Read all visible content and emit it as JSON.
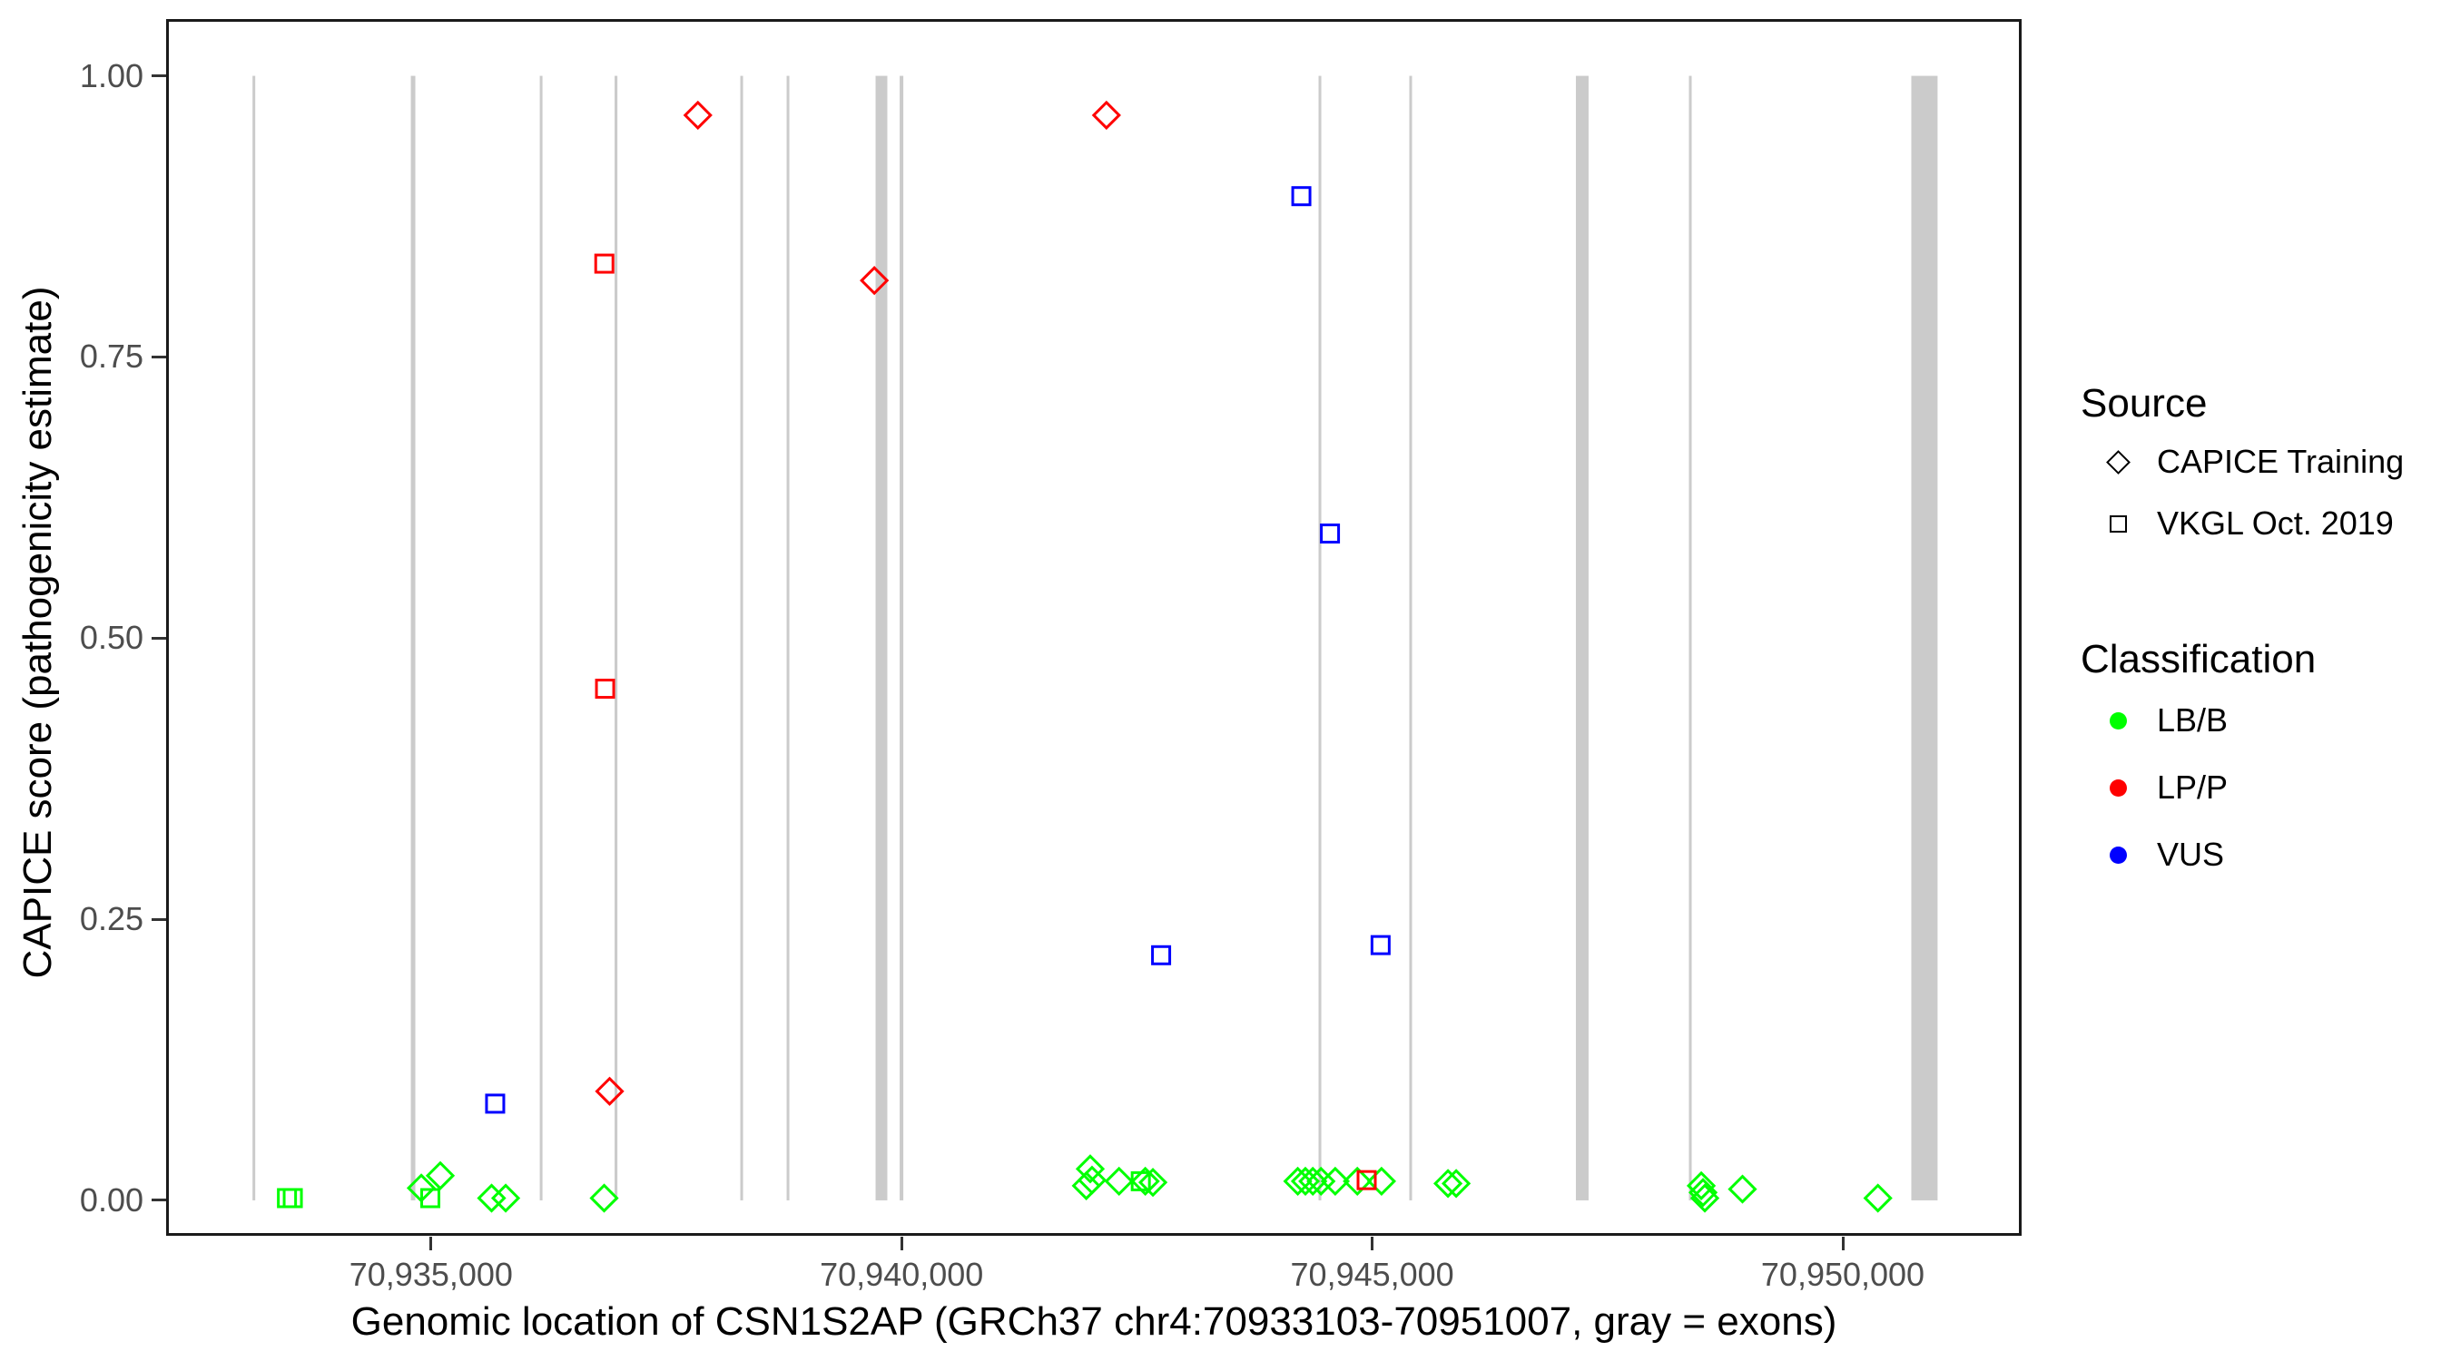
{
  "legend": {
    "source": {
      "title": "Source",
      "items": [
        {
          "label": "CAPICE Training",
          "shape": "diamond"
        },
        {
          "label": "VKGL Oct. 2019",
          "shape": "square"
        }
      ]
    },
    "classification": {
      "title": "Classification",
      "items": [
        {
          "label": "LB/B",
          "color": "#00FF00"
        },
        {
          "label": "LP/P",
          "color": "#FF0000"
        },
        {
          "label": "VUS",
          "color": "#0000FF"
        }
      ]
    }
  },
  "chart_data": {
    "type": "scatter",
    "xlabel": "Genomic location of CSN1S2AP (GRCh37 chr4:70933103-70951007, gray = exons)",
    "ylabel": "CAPICE score (pathogenicity estimate)",
    "x_domain": [
      70932185,
      70951900
    ],
    "y_domain": [
      -0.0315,
      1.0505
    ],
    "grid": false,
    "legend_position": "right",
    "x_ticks": [
      {
        "value": 70935000,
        "label": "70,935,000"
      },
      {
        "value": 70940000,
        "label": "70,940,000"
      },
      {
        "value": 70945000,
        "label": "70,945,000"
      },
      {
        "value": 70950000,
        "label": "70,950,000"
      }
    ],
    "y_ticks": [
      {
        "value": 0.0,
        "label": "0.00"
      },
      {
        "value": 0.25,
        "label": "0.25"
      },
      {
        "value": 0.5,
        "label": "0.50"
      },
      {
        "value": 0.75,
        "label": "0.75"
      },
      {
        "value": 1.0,
        "label": "1.00"
      }
    ],
    "exon_color": "#CBCBCB",
    "exons": [
      [
        70933103,
        70933132
      ],
      [
        70934785,
        70934833
      ],
      [
        70936155,
        70936184
      ],
      [
        70936950,
        70936980
      ],
      [
        70938286,
        70938315
      ],
      [
        70938778,
        70938807
      ],
      [
        70939723,
        70939848
      ],
      [
        70939979,
        70940018
      ],
      [
        70944430,
        70944459
      ],
      [
        70945394,
        70945423
      ],
      [
        70947164,
        70947299
      ],
      [
        70948365,
        70948394
      ],
      [
        70950728,
        70951007
      ]
    ],
    "source_shapes": {
      "CAPICE Training": "diamond",
      "VKGL Oct. 2019": "square"
    },
    "class_colors": {
      "LB/B": "#00FF00",
      "LP/P": "#FF0000",
      "VUS": "#0000FF"
    },
    "points": [
      {
        "x": 70933469,
        "y": 0.002,
        "source": "VKGL Oct. 2019",
        "classification": "LB/B"
      },
      {
        "x": 70933531,
        "y": 0.002,
        "source": "VKGL Oct. 2019",
        "classification": "LB/B"
      },
      {
        "x": 70934896,
        "y": 0.011,
        "source": "CAPICE Training",
        "classification": "LB/B"
      },
      {
        "x": 70934992,
        "y": 0.002,
        "source": "VKGL Oct. 2019",
        "classification": "LB/B"
      },
      {
        "x": 70935098,
        "y": 0.022,
        "source": "CAPICE Training",
        "classification": "LB/B"
      },
      {
        "x": 70935643,
        "y": 0.002,
        "source": "CAPICE Training",
        "classification": "LB/B"
      },
      {
        "x": 70935793,
        "y": 0.002,
        "source": "CAPICE Training",
        "classification": "LB/B"
      },
      {
        "x": 70936839,
        "y": 0.002,
        "source": "CAPICE Training",
        "classification": "LB/B"
      },
      {
        "x": 70941962,
        "y": 0.013,
        "source": "CAPICE Training",
        "classification": "LB/B"
      },
      {
        "x": 70942004,
        "y": 0.028,
        "source": "CAPICE Training",
        "classification": "LB/B"
      },
      {
        "x": 70942023,
        "y": 0.018,
        "source": "CAPICE Training",
        "classification": "LB/B"
      },
      {
        "x": 70942310,
        "y": 0.017,
        "source": "CAPICE Training",
        "classification": "LB/B"
      },
      {
        "x": 70942541,
        "y": 0.017,
        "source": "VKGL Oct. 2019",
        "classification": "LB/B"
      },
      {
        "x": 70942589,
        "y": 0.017,
        "source": "CAPICE Training",
        "classification": "LB/B"
      },
      {
        "x": 70942670,
        "y": 0.016,
        "source": "CAPICE Training",
        "classification": "LB/B"
      },
      {
        "x": 70944209,
        "y": 0.017,
        "source": "CAPICE Training",
        "classification": "LB/B"
      },
      {
        "x": 70944290,
        "y": 0.017,
        "source": "CAPICE Training",
        "classification": "LB/B"
      },
      {
        "x": 70944369,
        "y": 0.017,
        "source": "CAPICE Training",
        "classification": "LB/B"
      },
      {
        "x": 70944456,
        "y": 0.017,
        "source": "CAPICE Training",
        "classification": "LB/B"
      },
      {
        "x": 70944607,
        "y": 0.017,
        "source": "CAPICE Training",
        "classification": "LB/B"
      },
      {
        "x": 70944842,
        "y": 0.017,
        "source": "CAPICE Training",
        "classification": "LB/B"
      },
      {
        "x": 70945099,
        "y": 0.017,
        "source": "CAPICE Training",
        "classification": "LB/B"
      },
      {
        "x": 70945805,
        "y": 0.015,
        "source": "CAPICE Training",
        "classification": "LB/B"
      },
      {
        "x": 70945892,
        "y": 0.015,
        "source": "CAPICE Training",
        "classification": "LB/B"
      },
      {
        "x": 70948496,
        "y": 0.013,
        "source": "CAPICE Training",
        "classification": "LB/B"
      },
      {
        "x": 70948515,
        "y": 0.007,
        "source": "CAPICE Training",
        "classification": "LB/B"
      },
      {
        "x": 70948534,
        "y": 0.002,
        "source": "CAPICE Training",
        "classification": "LB/B"
      },
      {
        "x": 70948934,
        "y": 0.01,
        "source": "CAPICE Training",
        "classification": "LB/B"
      },
      {
        "x": 70950373,
        "y": 0.002,
        "source": "CAPICE Training",
        "classification": "LB/B"
      },
      {
        "x": 70936841,
        "y": 0.833,
        "source": "VKGL Oct. 2019",
        "classification": "LP/P"
      },
      {
        "x": 70936849,
        "y": 0.455,
        "source": "VKGL Oct. 2019",
        "classification": "LP/P"
      },
      {
        "x": 70936897,
        "y": 0.097,
        "source": "CAPICE Training",
        "classification": "LP/P"
      },
      {
        "x": 70937835,
        "y": 0.965,
        "source": "CAPICE Training",
        "classification": "LP/P"
      },
      {
        "x": 70939710,
        "y": 0.818,
        "source": "CAPICE Training",
        "classification": "LP/P"
      },
      {
        "x": 70942176,
        "y": 0.965,
        "source": "CAPICE Training",
        "classification": "LP/P"
      },
      {
        "x": 70944941,
        "y": 0.018,
        "source": "VKGL Oct. 2019",
        "classification": "LP/P"
      },
      {
        "x": 70935681,
        "y": 0.086,
        "source": "VKGL Oct. 2019",
        "classification": "VUS"
      },
      {
        "x": 70942757,
        "y": 0.218,
        "source": "VKGL Oct. 2019",
        "classification": "VUS"
      },
      {
        "x": 70944247,
        "y": 0.893,
        "source": "VKGL Oct. 2019",
        "classification": "VUS"
      },
      {
        "x": 70944551,
        "y": 0.593,
        "source": "VKGL Oct. 2019",
        "classification": "VUS"
      },
      {
        "x": 70945089,
        "y": 0.227,
        "source": "VKGL Oct. 2019",
        "classification": "VUS"
      }
    ]
  }
}
